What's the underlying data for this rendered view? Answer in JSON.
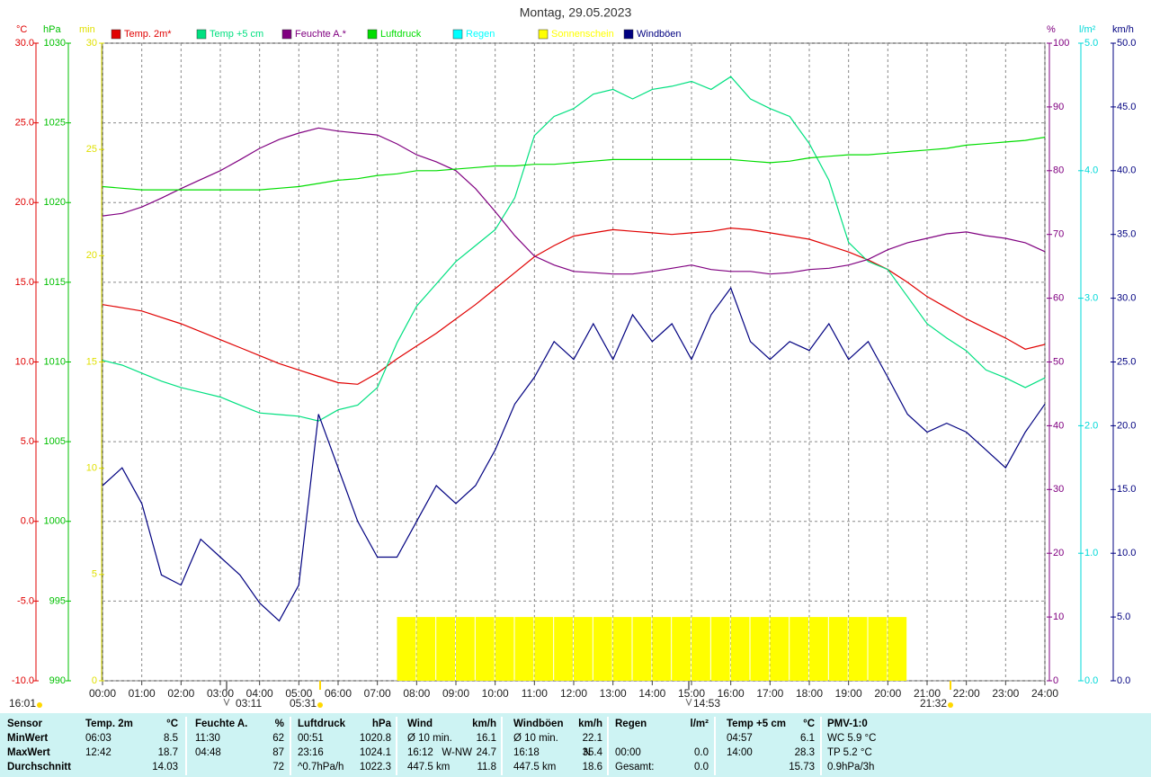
{
  "chart_data": {
    "type": "line",
    "title": "Montag, 29.05.2023",
    "x": [
      0,
      0.5,
      1,
      1.5,
      2,
      2.5,
      3,
      3.5,
      4,
      4.5,
      5,
      5.5,
      6,
      6.5,
      7,
      7.5,
      8,
      8.5,
      9,
      9.5,
      10,
      10.5,
      11,
      11.5,
      12,
      12.5,
      13,
      13.5,
      14,
      14.5,
      15,
      15.5,
      16,
      16.5,
      17,
      17.5,
      18,
      18.5,
      19,
      19.5,
      20,
      20.5,
      21,
      21.5,
      22,
      22.5,
      23,
      23.5,
      24
    ],
    "xlim": [
      0,
      24
    ],
    "xticks": [
      {
        "value": 0,
        "label": "00:00"
      },
      {
        "value": 1,
        "label": "01:00"
      },
      {
        "value": 2,
        "label": "02:00"
      },
      {
        "value": 3,
        "label": "03:00"
      },
      {
        "value": 4,
        "label": "04:00"
      },
      {
        "value": 5,
        "label": "05:00"
      },
      {
        "value": 6,
        "label": "06:00"
      },
      {
        "value": 7,
        "label": "07:00"
      },
      {
        "value": 8,
        "label": "08:00"
      },
      {
        "value": 9,
        "label": "09:00"
      },
      {
        "value": 10,
        "label": "10:00"
      },
      {
        "value": 11,
        "label": "11:00"
      },
      {
        "value": 12,
        "label": "12:00"
      },
      {
        "value": 13,
        "label": "13:00"
      },
      {
        "value": 14,
        "label": "14:00"
      },
      {
        "value": 15,
        "label": "15:00"
      },
      {
        "value": 16,
        "label": "16:00"
      },
      {
        "value": 17,
        "label": "17:00"
      },
      {
        "value": 18,
        "label": "18:00"
      },
      {
        "value": 19,
        "label": "19:00"
      },
      {
        "value": 20,
        "label": "20:00"
      },
      {
        "value": 21,
        "label": "21:00"
      },
      {
        "value": 22,
        "label": "22:00"
      },
      {
        "value": 23,
        "label": "23:00"
      },
      {
        "value": 24,
        "label": "24:00"
      }
    ],
    "grid": true,
    "axes": [
      {
        "label": "°C",
        "color": "#e00000",
        "lim": [
          -10,
          30
        ],
        "ticks": [
          {
            "value": 30,
            "label": "30.0"
          },
          {
            "value": 25,
            "label": "25.0"
          },
          {
            "value": 20,
            "label": "20.0"
          },
          {
            "value": 15,
            "label": "15.0"
          },
          {
            "value": 10,
            "label": "10.0"
          },
          {
            "value": 5,
            "label": "5.0"
          },
          {
            "value": 0,
            "label": "0.0"
          },
          {
            "value": -5,
            "label": "-5.0"
          },
          {
            "value": -10,
            "label": "-10.0"
          }
        ]
      },
      {
        "label": "hPa",
        "color": "#00c000",
        "lim": [
          990,
          1030
        ],
        "ticks": [
          1030,
          1025,
          1020,
          1015,
          1010,
          1005,
          1000,
          995,
          990
        ]
      },
      {
        "label": "min",
        "color": "#e0e000",
        "lim": [
          0,
          30
        ],
        "ticks": [
          30,
          25,
          20,
          15,
          10,
          5,
          0
        ]
      },
      {
        "label": "%",
        "color": "#800080",
        "lim": [
          0,
          100
        ],
        "ticks": [
          100,
          90,
          80,
          70,
          60,
          50,
          40,
          30,
          20,
          10,
          0
        ]
      },
      {
        "label": "l/m²",
        "color": "#00d8d8",
        "lim": [
          0,
          5
        ],
        "ticks": [
          {
            "value": 5,
            "label": "5.0"
          },
          {
            "value": 4,
            "label": "4.0"
          },
          {
            "value": 3,
            "label": "3.0"
          },
          {
            "value": 2,
            "label": "2.0"
          },
          {
            "value": 1,
            "label": "1.0"
          },
          {
            "value": 0,
            "label": "0.0"
          }
        ]
      },
      {
        "label": "km/h",
        "color": "#000080",
        "lim": [
          0,
          50
        ],
        "ticks": [
          {
            "value": 50,
            "label": "50.0"
          },
          {
            "value": 45,
            "label": "45.0"
          },
          {
            "value": 40,
            "label": "40.0"
          },
          {
            "value": 35,
            "label": "35.0"
          },
          {
            "value": 30,
            "label": "30.0"
          },
          {
            "value": 25,
            "label": "25.0"
          },
          {
            "value": 20,
            "label": "20.0"
          },
          {
            "value": 15,
            "label": "15.0"
          },
          {
            "value": 10,
            "label": "10.0"
          },
          {
            "value": 5,
            "label": "5.0"
          },
          {
            "value": 0,
            "label": "0.0"
          }
        ]
      }
    ],
    "series": [
      {
        "name": "Temp. 2m*",
        "color": "#e00000",
        "axis": 0,
        "values": [
          13.6,
          13.4,
          13.2,
          12.8,
          12.4,
          11.9,
          11.4,
          10.9,
          10.4,
          9.9,
          9.5,
          9.1,
          8.7,
          8.6,
          9.3,
          10.2,
          11.0,
          11.8,
          12.7,
          13.6,
          14.6,
          15.6,
          16.6,
          17.3,
          17.9,
          18.1,
          18.3,
          18.2,
          18.1,
          18.0,
          18.1,
          18.2,
          18.4,
          18.3,
          18.1,
          17.9,
          17.7,
          17.3,
          16.9,
          16.4,
          15.8,
          15.0,
          14.1,
          13.4,
          12.7,
          12.1,
          11.5,
          10.8,
          11.1
        ]
      },
      {
        "name": "Temp +5 cm",
        "color": "#00e080",
        "axis": 0,
        "values": [
          10.1,
          9.8,
          9.3,
          8.8,
          8.4,
          8.1,
          7.8,
          7.3,
          6.8,
          6.7,
          6.6,
          6.3,
          7.0,
          7.3,
          8.4,
          11.2,
          13.5,
          14.9,
          16.3,
          17.3,
          18.3,
          20.3,
          24.2,
          25.4,
          25.9,
          26.8,
          27.1,
          26.5,
          27.1,
          27.3,
          27.6,
          27.1,
          27.9,
          26.5,
          25.9,
          25.4,
          23.7,
          21.4,
          17.5,
          16.3,
          15.8,
          14.1,
          12.4,
          11.5,
          10.7,
          9.5,
          9.0,
          8.4,
          9.0
        ]
      },
      {
        "name": "Feuchte A.*",
        "color": "#800080",
        "axis": 3,
        "values": [
          72.9,
          73.3,
          74.3,
          75.7,
          77.2,
          78.6,
          80,
          81.7,
          83.5,
          84.9,
          85.9,
          86.7,
          86.2,
          85.9,
          85.6,
          84.2,
          82.5,
          81.4,
          80,
          77.2,
          73.6,
          69.8,
          66.6,
          65.2,
          64.2,
          64,
          63.8,
          63.8,
          64.2,
          64.7,
          65.2,
          64.5,
          64.2,
          64.2,
          63.8,
          64,
          64.5,
          64.7,
          65.2,
          66.1,
          67.6,
          68.7,
          69.4,
          70.1,
          70.4,
          69.8,
          69.4,
          68.7,
          67.3
        ]
      },
      {
        "name": "Luftdruck",
        "color": "#00dd00",
        "axis": 1,
        "values": [
          1021.0,
          1020.9,
          1020.8,
          1020.8,
          1020.8,
          1020.8,
          1020.8,
          1020.8,
          1020.8,
          1020.9,
          1021.0,
          1021.2,
          1021.4,
          1021.5,
          1021.7,
          1021.8,
          1022.0,
          1022.0,
          1022.1,
          1022.2,
          1022.3,
          1022.3,
          1022.4,
          1022.4,
          1022.5,
          1022.6,
          1022.7,
          1022.7,
          1022.7,
          1022.7,
          1022.7,
          1022.7,
          1022.7,
          1022.6,
          1022.5,
          1022.6,
          1022.8,
          1022.9,
          1023.0,
          1023.0,
          1023.1,
          1023.2,
          1023.3,
          1023.4,
          1023.6,
          1023.7,
          1023.8,
          1023.9,
          1024.1
        ]
      },
      {
        "name": "Regen",
        "color": "#00ffff",
        "axis": 4
      },
      {
        "name": "Sonnenschein",
        "color": "#ffff00",
        "axis": 2,
        "bars": true,
        "values": [
          0,
          0,
          0,
          0,
          0,
          0,
          0,
          0,
          0,
          0,
          0,
          0,
          0,
          0,
          0,
          3,
          3,
          3,
          3,
          3,
          3,
          3,
          3,
          3,
          3,
          3,
          3,
          3,
          3,
          3,
          3,
          3,
          3,
          3,
          3,
          3,
          3,
          3,
          3,
          3,
          3,
          0,
          0,
          0,
          0,
          0,
          0,
          0,
          0
        ]
      },
      {
        "name": "Windböen",
        "color": "#000080",
        "axis": 5,
        "values": [
          15.3,
          16.7,
          13.9,
          8.3,
          7.5,
          11.1,
          9.7,
          8.3,
          6.1,
          4.7,
          7.5,
          20.9,
          16.7,
          12.5,
          9.7,
          9.7,
          12.5,
          15.3,
          13.9,
          15.3,
          18.1,
          21.7,
          23.8,
          26.6,
          25.2,
          28,
          25.2,
          28.7,
          26.6,
          28,
          25.2,
          28.7,
          30.8,
          26.6,
          25.2,
          26.6,
          25.9,
          28,
          25.2,
          26.6,
          23.8,
          20.9,
          19.5,
          20.2,
          19.5,
          18.1,
          16.7,
          19.5,
          21.7
        ]
      }
    ],
    "annotations": [
      "16:01",
      "03:11",
      "05:31",
      "14:53",
      "21:32"
    ]
  },
  "table": {
    "header": [
      {
        "left": "Sensor"
      },
      {
        "left": "Temp. 2m",
        "right": "°C"
      },
      {
        "left": "Feuchte A.",
        "right": "%"
      },
      {
        "left": "Luftdruck",
        "right": "hPa"
      },
      {
        "left": "Wind",
        "right": "km/h"
      },
      {
        "left": "Windböen",
        "right": "km/h"
      },
      {
        "left": "Regen",
        "right": "l/m²"
      },
      {
        "left": "Temp +5 cm",
        "right": "°C"
      },
      {
        "left": "PMV-1:0"
      }
    ],
    "rows": [
      {
        "label": "MinWert",
        "cells": [
          {
            "left": "06:03",
            "right": "8.5"
          },
          {
            "left": "11:30",
            "right": "62"
          },
          {
            "left": "00:51",
            "right": "1020.8"
          },
          {
            "left": "Ø 10 min.",
            "right": "16.1"
          },
          {
            "left": "Ø 10 min.",
            "right": "22.1"
          },
          null,
          {
            "left": "04:57",
            "right": "6.1"
          },
          {
            "left": "WC 5.9 °C"
          }
        ]
      },
      {
        "label": "MaxWert",
        "cells": [
          {
            "left": "12:42",
            "right": "18.7"
          },
          {
            "left": "04:48",
            "right": "87"
          },
          {
            "left": "23:16",
            "right": "1024.1"
          },
          {
            "left": "16:12",
            "mid": "W-NW",
            "right": "24.7"
          },
          {
            "left": "16:18",
            "mid": "N",
            "right": "35.4"
          },
          {
            "left": "00:00",
            "right": "0.0"
          },
          {
            "left": "14:00",
            "right": "28.3"
          },
          {
            "left": "TP 5.2 °C"
          }
        ]
      },
      {
        "label": "Durchschnitt",
        "cells": [
          {
            "right": "14.03"
          },
          {
            "right": "72"
          },
          {
            "left": "^0.7hPa/h",
            "right": "1022.3"
          },
          {
            "left": "447.5 km",
            "right": "11.8"
          },
          {
            "left": "447.5 km",
            "right": "18.6"
          },
          {
            "left": "Gesamt:",
            "right": "0.0"
          },
          {
            "right": "15.73"
          },
          {
            "left": "0.9hPa/3h"
          }
        ]
      }
    ]
  }
}
